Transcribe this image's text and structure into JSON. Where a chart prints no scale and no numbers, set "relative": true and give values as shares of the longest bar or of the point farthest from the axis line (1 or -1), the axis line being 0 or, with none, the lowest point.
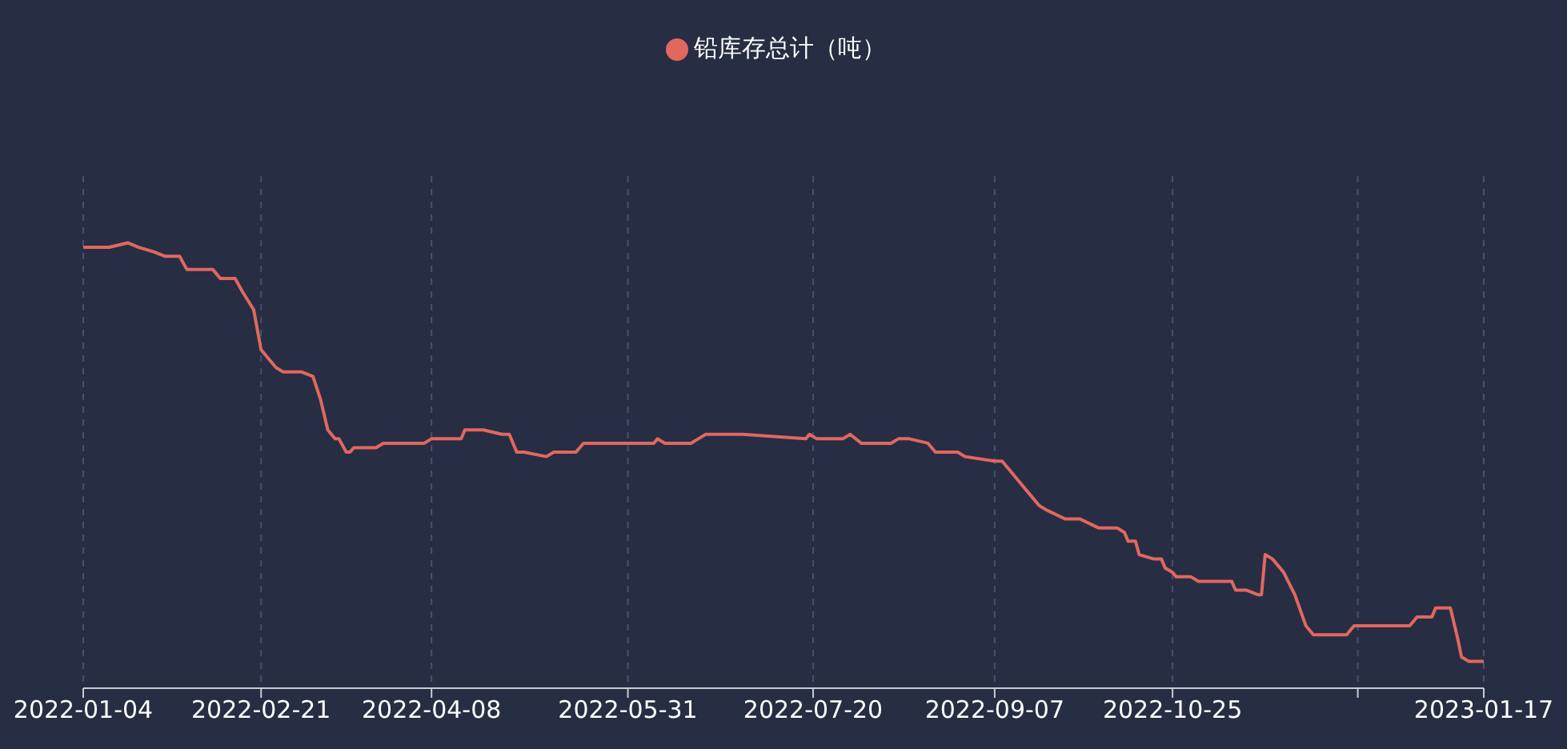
{
  "chart_data": {
    "type": "line",
    "relative": true,
    "legend": "top",
    "grid": "x",
    "marker": "none",
    "line_style": "solid",
    "x": [
      "2022-01-04",
      "2022-01-11",
      "2022-01-16",
      "2022-01-19",
      "2022-01-23",
      "2022-01-26",
      "2022-01-30",
      "2022-02-01",
      "2022-02-07",
      "2022-02-08",
      "2022-02-10",
      "2022-02-14",
      "2022-02-16",
      "2022-02-19",
      "2022-02-21",
      "2022-02-25",
      "2022-02-27",
      "2022-03-04",
      "2022-03-07",
      "2022-03-09",
      "2022-03-11",
      "2022-03-13",
      "2022-03-14",
      "2022-03-16",
      "2022-03-17",
      "2022-03-18",
      "2022-03-24",
      "2022-03-26",
      "2022-04-06",
      "2022-04-08",
      "2022-04-13",
      "2022-04-16",
      "2022-04-17",
      "2022-04-22",
      "2022-04-27",
      "2022-04-29",
      "2022-05-01",
      "2022-05-03",
      "2022-05-09",
      "2022-05-11",
      "2022-05-17",
      "2022-05-19",
      "2022-06-07",
      "2022-06-08",
      "2022-06-10",
      "2022-06-17",
      "2022-06-19",
      "2022-06-21",
      "2022-07-01",
      "2022-07-18",
      "2022-07-19",
      "2022-07-21",
      "2022-07-24",
      "2022-07-28",
      "2022-07-30",
      "2022-08-02",
      "2022-08-10",
      "2022-08-12",
      "2022-08-15",
      "2022-08-20",
      "2022-08-22",
      "2022-08-28",
      "2022-08-30",
      "2022-09-07",
      "2022-09-09",
      "2022-09-11",
      "2022-09-13",
      "2022-09-16",
      "2022-09-19",
      "2022-09-21",
      "2022-09-26",
      "2022-09-30",
      "2022-10-05",
      "2022-10-08",
      "2022-10-10",
      "2022-10-12",
      "2022-10-13",
      "2022-10-14",
      "2022-10-15",
      "2022-10-16",
      "2022-10-20",
      "2022-10-22",
      "2022-10-23",
      "2022-10-25",
      "2022-10-26",
      "2022-10-30",
      "2022-11-01",
      "2022-11-10",
      "2022-11-11",
      "2022-11-14",
      "2022-11-17",
      "2022-11-18",
      "2022-11-19",
      "2022-11-21",
      "2022-11-24",
      "2022-11-27",
      "2022-11-30",
      "2022-12-02",
      "2022-12-05",
      "2022-12-11",
      "2022-12-13",
      "2022-12-18",
      "2022-12-28",
      "2022-12-30",
      "2023-01-03",
      "2023-01-04",
      "2023-01-06",
      "2023-01-08",
      "2023-01-10",
      "2023-01-11",
      "2023-01-13",
      "2023-01-17"
    ],
    "xlim": [
      "2022-01-04",
      "2023-01-17"
    ],
    "xticks": [
      {
        "value": "2022-01-04",
        "label": "2022-01-04"
      },
      {
        "value": "2022-02-21",
        "label": "2022-02-21"
      },
      {
        "value": "2022-04-08",
        "label": "2022-04-08"
      },
      {
        "value": "2022-05-31",
        "label": "2022-05-31"
      },
      {
        "value": "2022-07-20",
        "label": "2022-07-20"
      },
      {
        "value": "2022-09-07",
        "label": "2022-09-07"
      },
      {
        "value": "2022-10-25",
        "label": "2022-10-25"
      },
      {
        "value": "2022-12-14",
        "label": null
      },
      {
        "value": "2023-01-17",
        "label": "2023-01-17"
      }
    ],
    "series": [
      {
        "name": "铅库存总计（吨）",
        "color": "#e0685f",
        "values": [
          0.99,
          0.99,
          1.0,
          0.99,
          0.98,
          0.97,
          0.97,
          0.94,
          0.94,
          0.94,
          0.92,
          0.92,
          0.89,
          0.85,
          0.76,
          0.72,
          0.71,
          0.71,
          0.7,
          0.65,
          0.58,
          0.56,
          0.56,
          0.53,
          0.53,
          0.54,
          0.54,
          0.55,
          0.55,
          0.56,
          0.56,
          0.56,
          0.58,
          0.58,
          0.57,
          0.57,
          0.53,
          0.53,
          0.52,
          0.53,
          0.53,
          0.55,
          0.55,
          0.56,
          0.55,
          0.55,
          0.56,
          0.57,
          0.57,
          0.56,
          0.57,
          0.56,
          0.56,
          0.56,
          0.57,
          0.55,
          0.55,
          0.56,
          0.56,
          0.55,
          0.53,
          0.53,
          0.52,
          0.51,
          0.51,
          0.49,
          0.47,
          0.44,
          0.41,
          0.4,
          0.38,
          0.38,
          0.36,
          0.36,
          0.36,
          0.35,
          0.33,
          0.33,
          0.33,
          0.3,
          0.29,
          0.29,
          0.27,
          0.26,
          0.25,
          0.25,
          0.24,
          0.24,
          0.22,
          0.22,
          0.21,
          0.21,
          0.3,
          0.29,
          0.26,
          0.21,
          0.14,
          0.12,
          0.12,
          0.12,
          0.14,
          0.14,
          0.14,
          0.16,
          0.16,
          0.18,
          0.18,
          0.18,
          0.11,
          0.07,
          0.06,
          0.06
        ]
      }
    ]
  }
}
